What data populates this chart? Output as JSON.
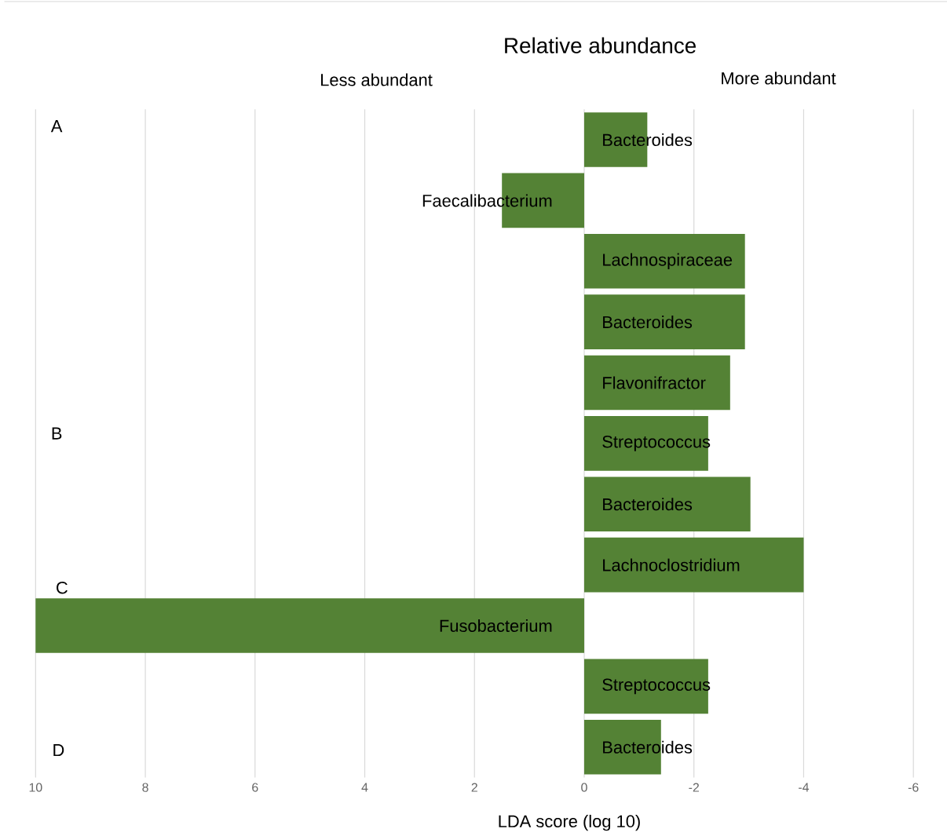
{
  "chart_data": {
    "type": "bar",
    "orientation": "horizontal",
    "title": "Relative abundance",
    "xlabel": "LDA score (log 10)",
    "categories": [
      "Bacteroides",
      "Faecalibacterium",
      "Lachnospiraceae",
      "Bacteroides",
      "Flavonifractor",
      "Streptococcus",
      "Bacteroides",
      "Lachnoclostridium",
      "Fusobacterium",
      "Streptococcus",
      "Bacteroides"
    ],
    "values": [
      -1.15,
      1.5,
      -2.93,
      -2.93,
      -2.66,
      -2.26,
      -3.03,
      -4.0,
      10,
      -2.26,
      -1.4
    ],
    "color": "#548235",
    "xlim": [
      10,
      -6
    ],
    "xticks": [
      10,
      8,
      6,
      4,
      2,
      0,
      -2,
      -4,
      -6
    ],
    "grid": "x",
    "annotations": [
      "Less abundant",
      "More abundant",
      "A",
      "B",
      "C",
      "D"
    ]
  }
}
